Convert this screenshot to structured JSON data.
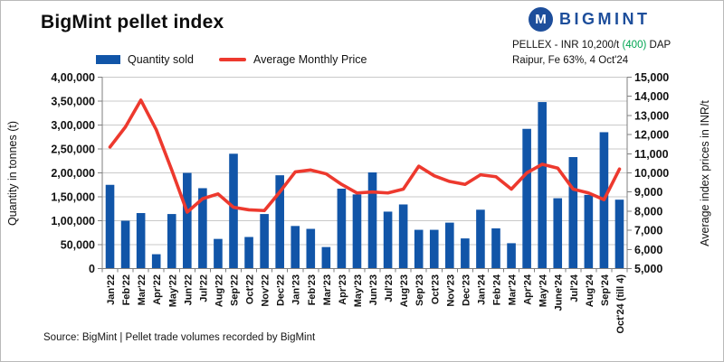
{
  "header": {
    "title": "BigMint pellet index",
    "logo_text": "BIGMINT",
    "logo_icon_letter": "M",
    "pellex_prefix": "PELLEX - INR 10,200/t ",
    "pellex_change": "(400)",
    "pellex_suffix": " DAP",
    "pellex_line2": "Raipur, Fe 63%, 4 Oct'24"
  },
  "legend": {
    "bar_label": "Quantity sold",
    "line_label": "Average Monthly Price"
  },
  "footer": {
    "source": "Source: BigMint | Pellet trade volumes recorded by BigMint"
  },
  "colors": {
    "bar": "#1155a8",
    "line": "#ed392e",
    "logo_navy": "#1d4e9b",
    "change_green": "#00a551",
    "grid": "#c9c9c9",
    "axis": "#7f7f7f",
    "text": "#111111"
  },
  "chart_data": {
    "type": "bar",
    "note": "combo bar+line, dual axes",
    "categories": [
      "Jan'22",
      "Feb'22",
      "Mar'22",
      "Apr'22",
      "May'22",
      "Jun'22",
      "Jul'22",
      "Aug'22",
      "Sep'22",
      "Oct'22",
      "Nov'22",
      "Dec'22",
      "Jan'23",
      "Feb'23",
      "Mar'23",
      "Apr'23",
      "May'23",
      "Jun'23",
      "Jul'23",
      "Aug'23",
      "Sep'23",
      "Oct'23",
      "Nov'23",
      "Dec'23",
      "Jan'24",
      "Feb'24",
      "Mar'24",
      "Apr'24",
      "May'24",
      "June'24",
      "Jul'24",
      "Aug'24",
      "Sep'24",
      "Oct'24 (till 4)"
    ],
    "series": [
      {
        "name": "Quantity sold",
        "type": "bar",
        "axis": "left",
        "values": [
          175000,
          100000,
          116000,
          30000,
          114000,
          200000,
          168000,
          62000,
          240000,
          66000,
          114000,
          195000,
          89000,
          83000,
          45000,
          167000,
          155000,
          201000,
          119000,
          134000,
          81000,
          81000,
          96000,
          63000,
          123000,
          84000,
          53000,
          292000,
          348000,
          147000,
          233000,
          154000,
          285000,
          144000
        ]
      },
      {
        "name": "Average Monthly Price",
        "type": "line",
        "axis": "right",
        "values": [
          11350,
          12400,
          13800,
          12250,
          10150,
          7950,
          8650,
          8900,
          8200,
          8070,
          8030,
          9000,
          10050,
          10150,
          9950,
          9400,
          8950,
          9000,
          8950,
          9150,
          10350,
          9850,
          9550,
          9400,
          9900,
          9800,
          9150,
          10000,
          10450,
          10250,
          9150,
          8950,
          8600,
          10200
        ]
      }
    ],
    "left_axis": {
      "title": "Quantity in tonnes (t)",
      "min": 0,
      "max": 400000,
      "step": 50000,
      "tick_labels": [
        "0",
        "50,000",
        "1,00,000",
        "1,50,000",
        "2,00,000",
        "2,50,000",
        "3,00,000",
        "3,50,000",
        "4,00,000"
      ]
    },
    "right_axis": {
      "title": "Average index prices in INR/t",
      "min": 5000,
      "max": 15000,
      "step": 1000,
      "tick_labels": [
        "5,000",
        "6,000",
        "7,000",
        "8,000",
        "9,000",
        "10,000",
        "11,000",
        "12,000",
        "13,000",
        "14,000",
        "15,000"
      ]
    },
    "grid": true,
    "legend_position": "top"
  }
}
